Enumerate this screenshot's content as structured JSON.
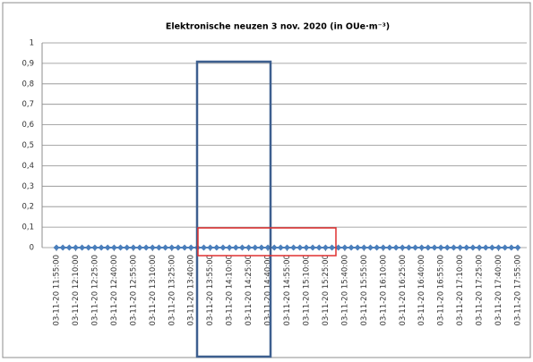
{
  "chart_data": {
    "type": "line",
    "title": "Elektronische neuzen 3 nov. 2020 (in OUe·m⁻³)",
    "categories": [
      "03-11-20 11:55:00",
      null,
      null,
      "03-11-20 12:10:00",
      null,
      null,
      "03-11-20 12:25:00",
      null,
      null,
      "03-11-20 12:40:00",
      null,
      null,
      "03-11-20 12:55:00",
      null,
      null,
      "03-11-20 13:10:00",
      null,
      null,
      "03-11-20 13:25:00",
      null,
      null,
      "03-11-20 13:40:00",
      null,
      null,
      "03-11-20 13:55:00",
      null,
      null,
      "03-11-20 14:10:00",
      null,
      null,
      "03-11-20 14:25:00",
      null,
      null,
      "03-11-20 14:40:00",
      null,
      null,
      "03-11-20 14:55:00",
      null,
      null,
      "03-11-20 15:10:00",
      null,
      null,
      "03-11-20 15:25:00",
      null,
      null,
      "03-11-20 15:40:00",
      null,
      null,
      "03-11-20 15:55:00",
      null,
      null,
      "03-11-20 16:10:00",
      null,
      null,
      "03-11-20 16:25:00",
      null,
      null,
      "03-11-20 16:40:00",
      null,
      null,
      "03-11-20 16:55:00",
      null,
      null,
      "03-11-20 17:10:00",
      null,
      null,
      "03-11-20 17:25:00",
      null,
      null,
      "03-11-20 17:40:00",
      null,
      null,
      "03-11-20 17:55:00"
    ],
    "series": [
      {
        "color": "#4a7ebb",
        "values": [
          0,
          0,
          0,
          0,
          0,
          0,
          0,
          0,
          0,
          0,
          0,
          0,
          0,
          0,
          0,
          0,
          0,
          0,
          0,
          0,
          0,
          0,
          0,
          0,
          0,
          0,
          0,
          0,
          0,
          0,
          0,
          0,
          0,
          0,
          0,
          0,
          0,
          0,
          0,
          0,
          0,
          0,
          0,
          0,
          0,
          0,
          0,
          0,
          0,
          0,
          0,
          0,
          0,
          0,
          0,
          0,
          0,
          0,
          0,
          0,
          0,
          0,
          0,
          0,
          0,
          0,
          0,
          0,
          0,
          0,
          0,
          0,
          0
        ]
      }
    ],
    "ylim": [
      0,
      1
    ],
    "yticks": [
      0,
      {
        "value": 0.1,
        "label": "0,1"
      },
      {
        "value": 0.2,
        "label": "0,2"
      },
      {
        "value": 0.3,
        "label": "0,3"
      },
      {
        "value": 0.4,
        "label": "0,4"
      },
      {
        "value": 0.5,
        "label": "0,5"
      },
      {
        "value": 0.6,
        "label": "0,6"
      },
      {
        "value": 0.7,
        "label": "0,7"
      },
      {
        "value": 0.8,
        "label": "0,8"
      },
      {
        "value": 0.9,
        "label": "0,9"
      },
      1
    ],
    "grid": true
  }
}
